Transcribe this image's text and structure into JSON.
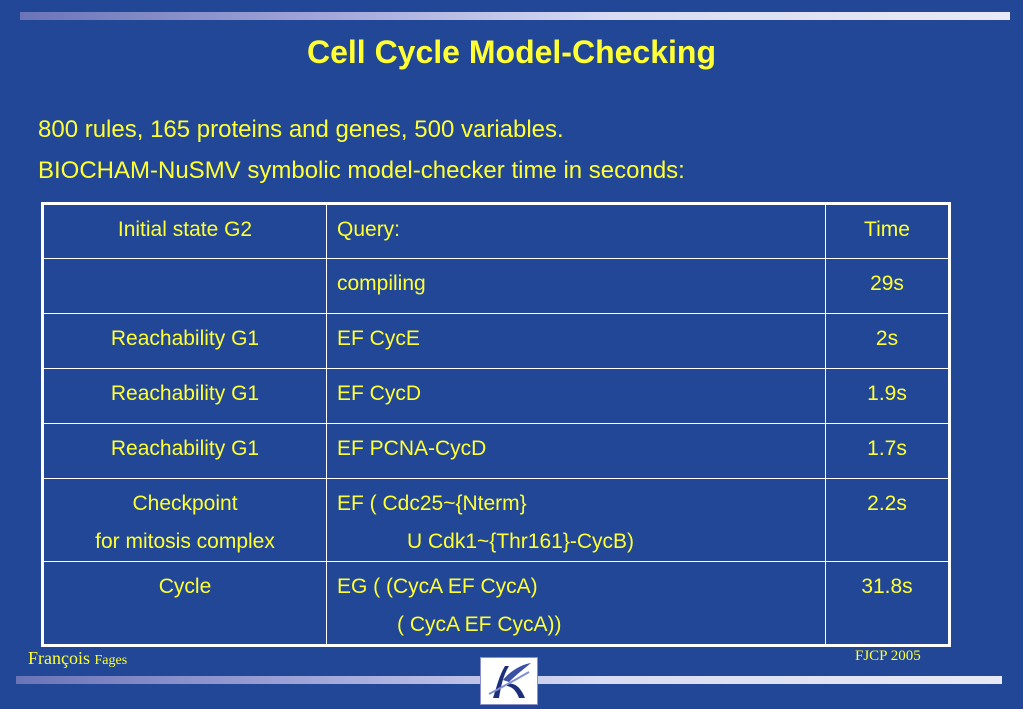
{
  "title": "Cell Cycle Model-Checking",
  "intro": {
    "line1": "800 rules, 165 proteins and genes, 500 variables.",
    "line2": "BIOCHAM-NuSMV symbolic model-checker time in seconds:"
  },
  "table": {
    "header": {
      "col1": "Initial state G2",
      "col2": "Query:",
      "col3": "Time"
    },
    "rows": [
      {
        "col1": "",
        "col2": "compiling",
        "col3": "29s"
      },
      {
        "col1": "Reachability G1",
        "col2": "EF CycE",
        "col3": "2s"
      },
      {
        "col1": "Reachability G1",
        "col2": "EF CycD",
        "col3": "1.9s"
      },
      {
        "col1": "Reachability G1",
        "col2": "EF PCNA-CycD",
        "col3": "1.7s"
      },
      {
        "col1a": "Checkpoint",
        "col1b": "for mitosis complex",
        "col2a": "EF ( Cdc25~{Nterm}",
        "col2b": "U Cdk1~{Thr161}-CycB)",
        "col3": "2.2s"
      },
      {
        "col1": "Cycle",
        "col2a": "EG ( (CycA  EF  CycA) ",
        "col2b": "( CycA  EF CycA))",
        "col3": "31.8s"
      }
    ]
  },
  "footer": {
    "author_first": "François",
    "author_last": "Fages",
    "event": "FJCP 2005"
  },
  "colors": {
    "background": "#214796",
    "text": "#ffff33",
    "border": "#ffffff"
  },
  "logo": {
    "icon": "inria-logo"
  }
}
